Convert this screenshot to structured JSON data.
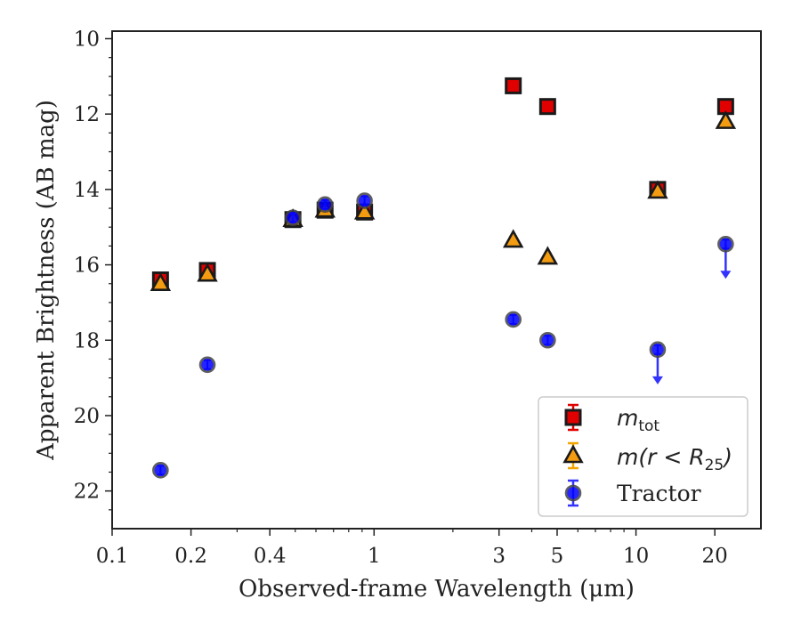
{
  "chart_data": {
    "type": "scatter",
    "xlabel": "Observed-frame Wavelength (μm)",
    "ylabel": "Apparent Brightness (AB mag)",
    "x_scale": "log",
    "xlim": [
      0.1,
      30
    ],
    "ylim": [
      23,
      9.8
    ],
    "y_inverted": true,
    "x_ticks": [
      {
        "value": 0.1,
        "label": "0.1"
      },
      {
        "value": 0.2,
        "label": "0.2"
      },
      {
        "value": 0.4,
        "label": "0.4"
      },
      {
        "value": 1,
        "label": "1"
      },
      {
        "value": 3,
        "label": "3"
      },
      {
        "value": 5,
        "label": "5"
      },
      {
        "value": 10,
        "label": "10"
      },
      {
        "value": 20,
        "label": "20"
      }
    ],
    "y_ticks": [
      {
        "value": 10,
        "label": "10"
      },
      {
        "value": 12,
        "label": "12"
      },
      {
        "value": 14,
        "label": "14"
      },
      {
        "value": 16,
        "label": "16"
      },
      {
        "value": 18,
        "label": "18"
      },
      {
        "value": 20,
        "label": "20"
      },
      {
        "value": 22,
        "label": "22"
      }
    ],
    "grid": false,
    "legend_position": "bottom-right",
    "series": [
      {
        "name": "m_tot",
        "marker": "square",
        "color": "#e00000",
        "edge_color": "#1a1a1a",
        "error_color": "#e00000",
        "points": [
          {
            "x": 0.153,
            "y": 16.4
          },
          {
            "x": 0.231,
            "y": 16.15
          },
          {
            "x": 0.49,
            "y": 14.8
          },
          {
            "x": 0.65,
            "y": 14.55
          },
          {
            "x": 0.92,
            "y": 14.6
          },
          {
            "x": 3.4,
            "y": 11.25
          },
          {
            "x": 4.6,
            "y": 11.8
          },
          {
            "x": 12.1,
            "y": 14.0
          },
          {
            "x": 22.0,
            "y": 11.8
          }
        ]
      },
      {
        "name": "m(r < R25)",
        "marker": "triangle",
        "color": "#f39c12",
        "edge_color": "#1a1a1a",
        "error_color": "#f0a500",
        "points": [
          {
            "x": 0.153,
            "y": 16.5
          },
          {
            "x": 0.231,
            "y": 16.25
          },
          {
            "x": 0.49,
            "y": 14.8
          },
          {
            "x": 0.65,
            "y": 14.55
          },
          {
            "x": 0.92,
            "y": 14.6
          },
          {
            "x": 3.4,
            "y": 15.35
          },
          {
            "x": 4.6,
            "y": 15.8
          },
          {
            "x": 12.1,
            "y": 14.05
          },
          {
            "x": 22.0,
            "y": 12.2
          }
        ]
      },
      {
        "name": "Tractor",
        "marker": "circle",
        "color": "#0000ff",
        "edge_color": "#444444",
        "error_color": "#3333ff",
        "points": [
          {
            "x": 0.153,
            "y": 21.45
          },
          {
            "x": 0.231,
            "y": 18.65
          },
          {
            "x": 0.49,
            "y": 14.75
          },
          {
            "x": 0.65,
            "y": 14.4
          },
          {
            "x": 0.92,
            "y": 14.3
          },
          {
            "x": 3.4,
            "y": 17.45
          },
          {
            "x": 4.6,
            "y": 18.0
          },
          {
            "x": 12.1,
            "y": 18.25,
            "upper_limit": true
          },
          {
            "x": 22.0,
            "y": 15.45,
            "upper_limit": true
          }
        ]
      }
    ],
    "legend": [
      {
        "main": "m",
        "sub": "tot"
      },
      {
        "main": "m(r < R",
        "sub": "25",
        "close": ")"
      },
      {
        "main": "Tractor"
      }
    ]
  }
}
